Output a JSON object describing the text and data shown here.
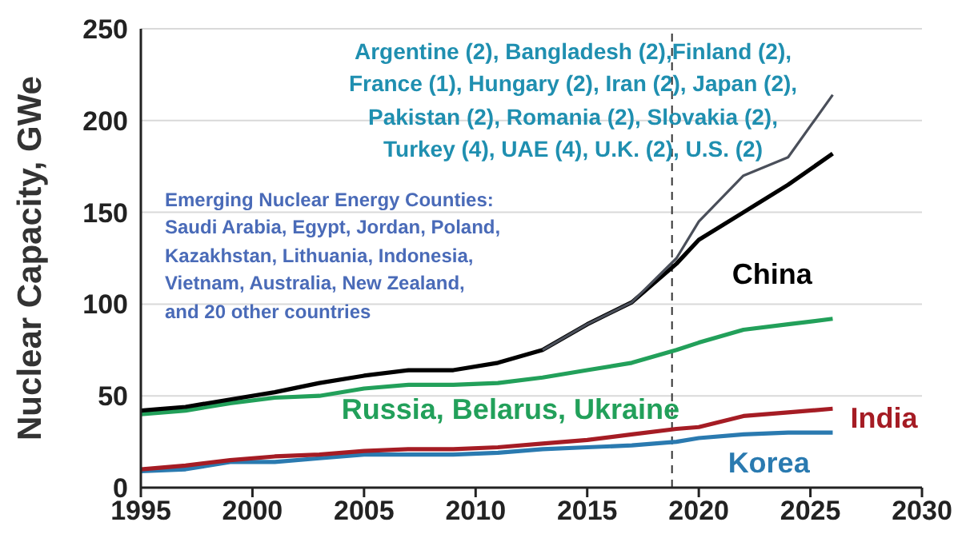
{
  "chart_data": {
    "type": "line",
    "ylabel": "Nuclear Capacity, GWe",
    "x": [
      1995,
      1997,
      1999,
      2001,
      2003,
      2005,
      2007,
      2009,
      2011,
      2013,
      2015,
      2017,
      2019,
      2020,
      2022,
      2024,
      2026
    ],
    "series": [
      {
        "color": "#4a4f5a",
        "values": [
          null,
          null,
          null,
          null,
          null,
          null,
          null,
          null,
          null,
          75,
          89,
          101,
          125,
          145,
          170,
          180,
          214
        ]
      },
      {
        "name": "China",
        "color": "#000000",
        "values": [
          42,
          44,
          48,
          52,
          57,
          61,
          64,
          64,
          68,
          75,
          89,
          101,
          122,
          135,
          150,
          165,
          182
        ]
      },
      {
        "name": "Russia, Belarus, Ukraine",
        "color": "#22a05a",
        "values": [
          40,
          42,
          46,
          49,
          50,
          54,
          56,
          56,
          57,
          60,
          64,
          68,
          75,
          79,
          86,
          89,
          92
        ]
      },
      {
        "name": "India",
        "color": "#a51c24",
        "values": [
          10,
          12,
          15,
          17,
          18,
          20,
          21,
          21,
          22,
          24,
          26,
          29,
          32,
          33,
          39,
          41,
          43
        ]
      },
      {
        "name": "Korea",
        "color": "#2a7ab0",
        "values": [
          9,
          10,
          14,
          14,
          16,
          18,
          18,
          18,
          19,
          21,
          22,
          23,
          25,
          27,
          29,
          30,
          30
        ]
      }
    ],
    "xlim": [
      1995,
      2030
    ],
    "xticks": [
      1995,
      2000,
      2005,
      2010,
      2015,
      2020,
      2025,
      2030
    ],
    "ylim": [
      0,
      250
    ],
    "yticks": [
      0,
      50,
      100,
      150,
      200,
      250
    ],
    "grid": "y",
    "legend": false,
    "marker": "none",
    "line_style": "solid",
    "ref_lines": [
      {
        "axis": "x",
        "value": 2018.8,
        "line_style": "dashed",
        "color": "#333333"
      }
    ],
    "annotations": [
      "Argentine (2), Bangladesh (2),Finland (2),\nFrance (1), Hungary (2), Iran (2), Japan (2),\nPakistan (2), Romania (2), Slovakia (2),\nTurkey (4), UAE (4), U.K. (2), U.S. (2)",
      "Emerging Nuclear Energy Counties:\nSaudi Arabia, Egypt, Jordan, Poland,\nKazakhstan, Lithuania, Indonesia,\nVietnam, Australia, New Zealand,\nand 20 other countries"
    ]
  }
}
